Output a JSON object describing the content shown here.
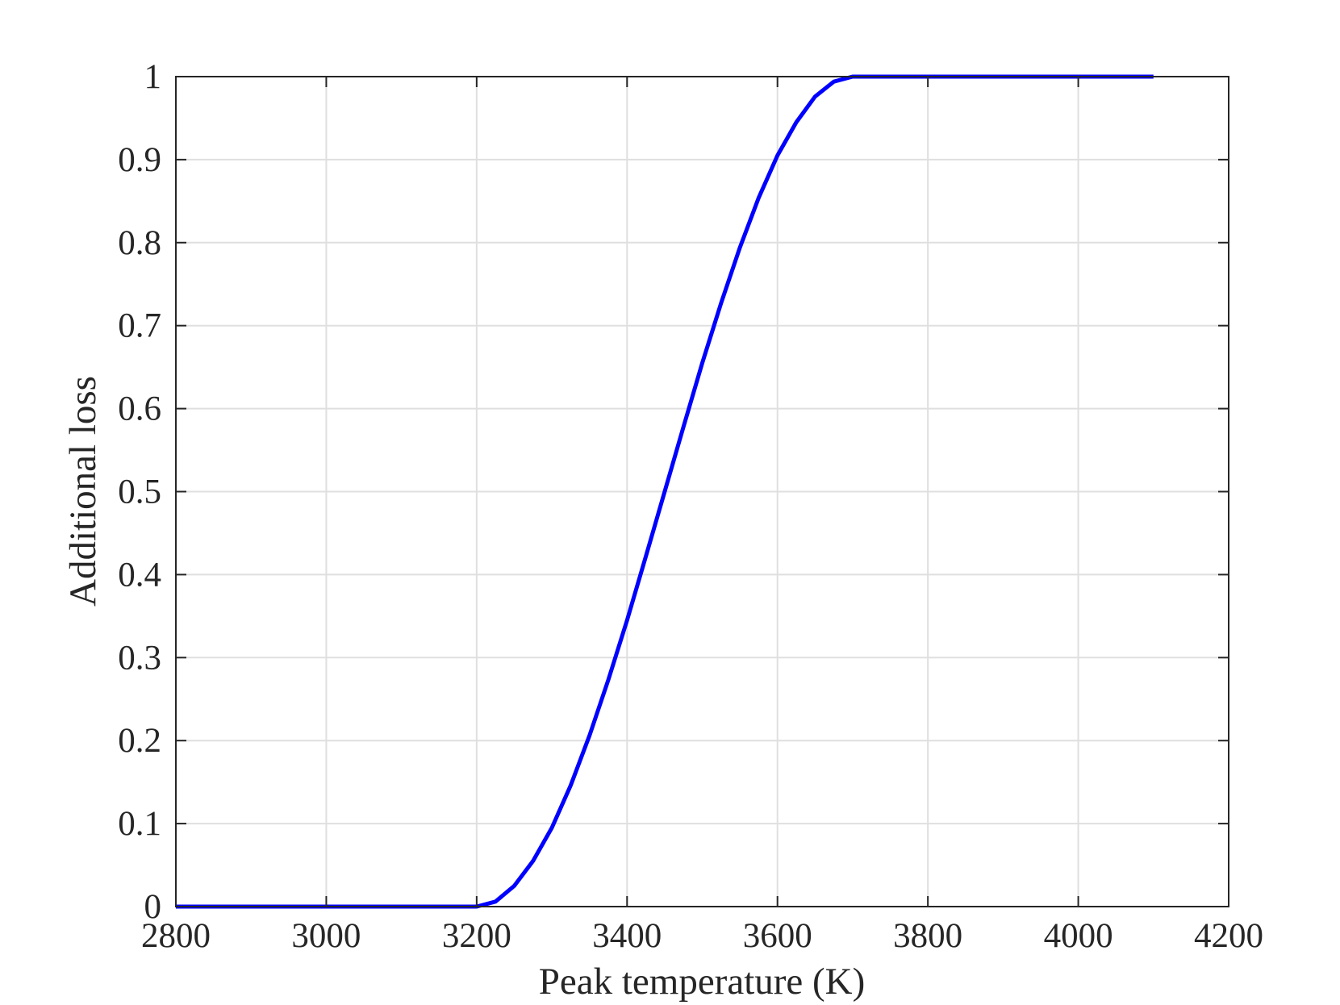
{
  "chart_data": {
    "type": "line",
    "xlabel": "Peak temperature (K)",
    "ylabel": "Additional loss",
    "x": [
      2800,
      3200,
      3225,
      3250,
      3275,
      3300,
      3325,
      3350,
      3375,
      3400,
      3425,
      3450,
      3475,
      3500,
      3525,
      3550,
      3575,
      3600,
      3625,
      3650,
      3675,
      3700,
      4100
    ],
    "series": [
      {
        "name": "Additional loss",
        "color": "#0000ff",
        "values": [
          0,
          0,
          0.006,
          0.025,
          0.055,
          0.095,
          0.146,
          0.206,
          0.273,
          0.345,
          0.422,
          0.5,
          0.578,
          0.655,
          0.727,
          0.794,
          0.854,
          0.905,
          0.945,
          0.976,
          0.994,
          1,
          1
        ]
      }
    ],
    "xlim": [
      2800,
      4200
    ],
    "xticks": [
      2800,
      3000,
      3200,
      3400,
      3600,
      3800,
      4000,
      4200
    ],
    "ylim": [
      0,
      1
    ],
    "yticks": [
      0,
      0.1,
      0.2,
      0.3,
      0.4,
      0.5,
      0.6,
      0.7,
      0.8,
      0.9,
      1
    ],
    "grid": true
  }
}
